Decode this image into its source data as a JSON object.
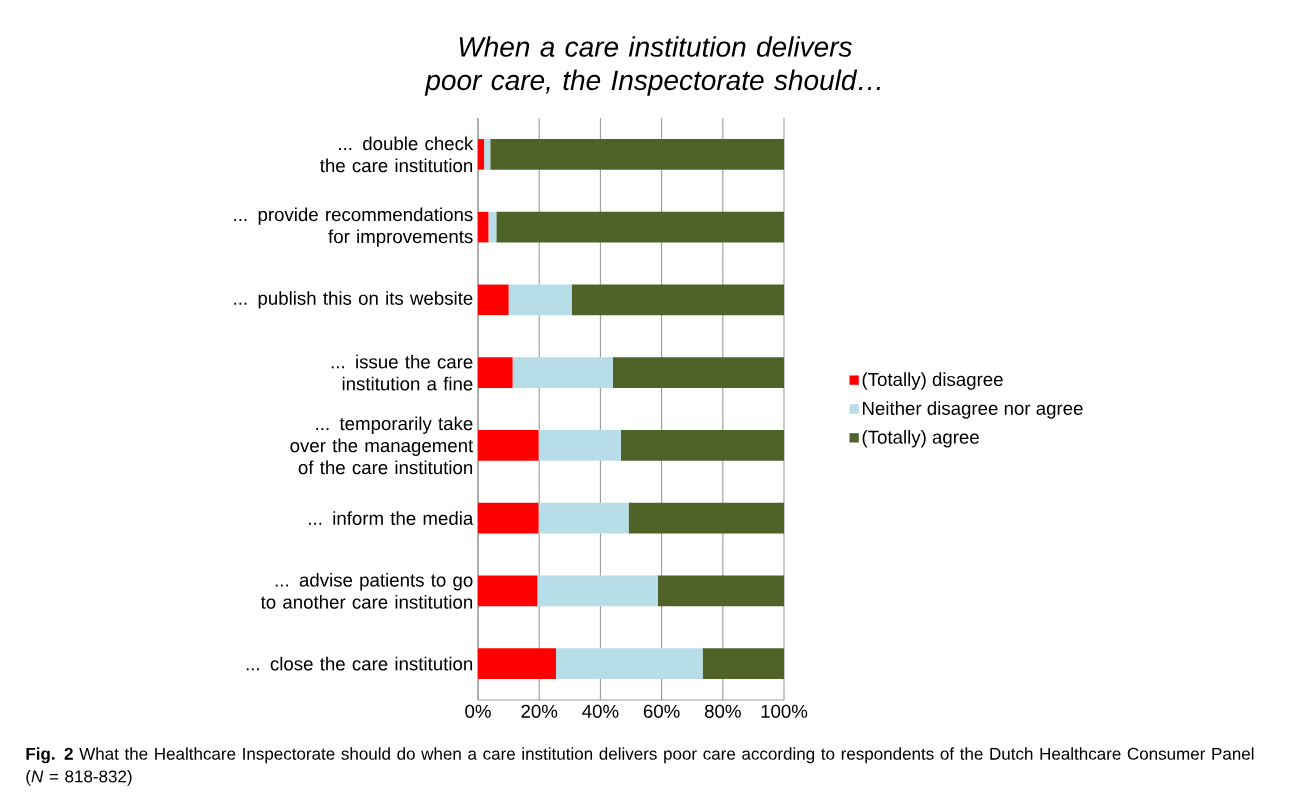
{
  "chart_data": {
    "type": "bar",
    "orientation": "horizontal",
    "stacked": true,
    "title": "When a care institution delivers poor care, the Inspectorate should…",
    "categories": [
      "... double check the care institution",
      "... provide recommendations for improvements",
      "... publish this on its website",
      "... issue the care institution a fine",
      "... temporarily take over the management of the care institution",
      "... inform the media",
      "... advise patients to go to another care institution",
      "... close the care institution"
    ],
    "series": [
      {
        "name": "(Totally) disagree",
        "color": "#ff0000",
        "values": [
          2,
          3.4,
          10,
          11.3,
          19.8,
          19.8,
          19.4,
          25.5
        ]
      },
      {
        "name": "Neither disagree nor agree",
        "color": "#b7dde8",
        "values": [
          2,
          2.6,
          20.6,
          32.8,
          26.9,
          29.4,
          39.4,
          47.9
        ]
      },
      {
        "name": "(Totally) agree",
        "color": "#4f6228",
        "values": [
          96,
          94,
          69.4,
          55.9,
          53.3,
          50.8,
          41.2,
          26.6
        ]
      }
    ],
    "xlim": [
      0,
      100
    ],
    "xticks": [
      {
        "value": 0,
        "label": "0%"
      },
      {
        "value": 20,
        "label": "20%"
      },
      {
        "value": 40,
        "label": "40%"
      },
      {
        "value": 60,
        "label": "60%"
      },
      {
        "value": 80,
        "label": "80%"
      },
      {
        "value": 100,
        "label": "100%"
      }
    ],
    "grid": "x",
    "legend": "right",
    "annotations": [
      "**Fig. 2** What the Healthcare Inspectorate should do when a care institution delivers poor care according to respondents of the Dutch Healthcare Consumer Panel (*N* = 818-832)"
    ]
  }
}
